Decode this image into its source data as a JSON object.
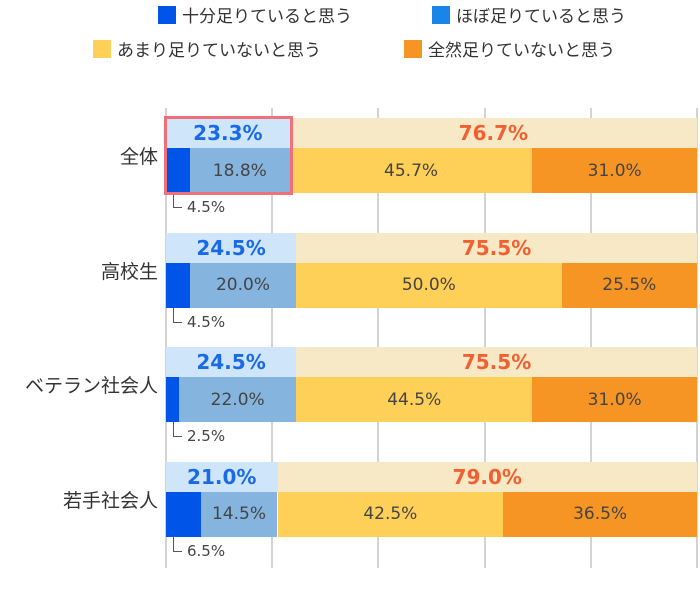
{
  "chart_data": {
    "type": "bar",
    "orientation": "horizontal-stacked",
    "xlim": [
      0,
      100
    ],
    "grid": true,
    "categories": [
      "全体",
      "高校生",
      "ベテラン社会人",
      "若手社会人"
    ],
    "series": [
      {
        "name": "十分足りていると思う",
        "color": "#0055e8",
        "values": [
          4.5,
          4.5,
          2.5,
          6.5
        ]
      },
      {
        "name": "ほぼ足りていると思う",
        "color": "#1a85e8",
        "bar_color": "#85b5df",
        "values": [
          18.8,
          20.0,
          22.0,
          14.5
        ]
      },
      {
        "name": "あまり足りていないと思う",
        "color": "#ffd057",
        "values": [
          45.7,
          50.0,
          44.5,
          42.5
        ]
      },
      {
        "name": "全然足りていないと思う",
        "color": "#f79524",
        "values": [
          31.0,
          25.5,
          31.0,
          36.5
        ]
      }
    ],
    "summary": {
      "sufficient": {
        "values": [
          23.3,
          24.5,
          24.5,
          21.0
        ],
        "labels": [
          "23.3%",
          "24.5%",
          "24.5%",
          "21.0%"
        ],
        "color": "#1a6ae8",
        "band": "#cfe6fa"
      },
      "insufficient": {
        "values": [
          76.7,
          75.5,
          75.5,
          79.0
        ],
        "labels": [
          "76.7%",
          "75.5%",
          "75.5%",
          "79.0%"
        ],
        "color": "#f06030",
        "band": "#f7e8c6"
      }
    },
    "labels": [
      [
        "4.5%",
        "18.8%",
        "45.7%",
        "31.0%"
      ],
      [
        "4.5%",
        "20.0%",
        "50.0%",
        "25.5%"
      ],
      [
        "2.5%",
        "22.0%",
        "44.5%",
        "31.0%"
      ],
      [
        "6.5%",
        "14.5%",
        "42.5%",
        "36.5%"
      ]
    ],
    "highlighted_category": "全体",
    "legend_placement": "top"
  }
}
